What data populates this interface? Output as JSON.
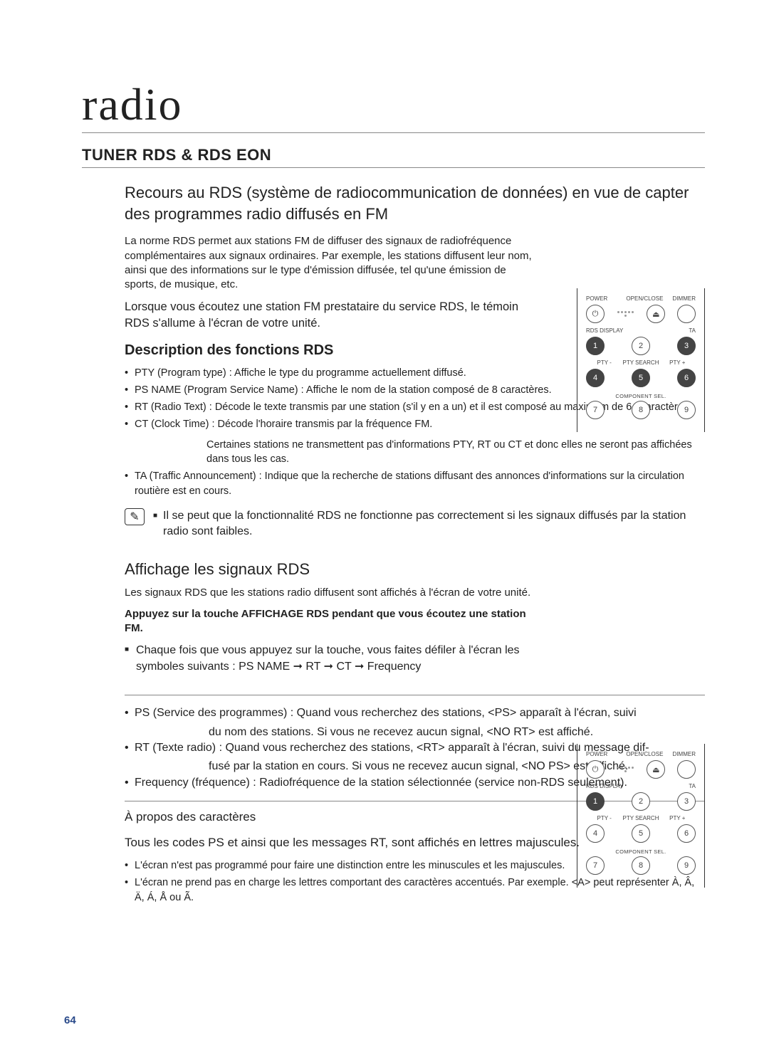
{
  "section_title": "radio",
  "h1": "TUNER RDS & RDS EON",
  "subtitle": "Recours au RDS (système de radiocommunication de données) en vue de capter des programmes radio diffusés en FM",
  "p1": "La norme RDS permet aux stations FM de diffuser des signaux de radiofréquence complémentaires aux signaux ordinaires. Par exemple, les stations diffusent leur nom, ainsi que des informations sur le type d'émission diffusée, tel qu'une émission de sports, de musique, etc.",
  "p2": "Lorsque vous écoutez une station FM prestataire du service RDS, le témoin RDS s'allume à l'écran de votre unité.",
  "h2a": "Description des fonctions RDS",
  "func": {
    "b1": "PTY (Program type) : Affiche le type du programme actuellement diffusé.",
    "b2": "PS NAME (Program Service Name) : Affiche le nom de la station composé de 8 caractères.",
    "b3": "RT (Radio Text) : Décode le texte transmis par une station (s'il y en a un) et il est composé au maximum de 64 caractères.",
    "b4": "CT (Clock Time) : Décode l'horaire transmis par la fréquence FM.",
    "b4_note": "Certaines stations ne transmettent pas d'informations PTY, RT ou CT et donc elles ne seront pas affichées dans tous les cas.",
    "b5": "TA (Traffic Announcement) : Indique que la recherche de stations diffusant des annonces d'informations sur la circulation routière est en cours."
  },
  "note1": "Il se peut que la fonctionnalité RDS ne fonctionne pas correctement si les signaux diffusés par la station radio sont faibles.",
  "h3a": "Affichage les signaux RDS",
  "p3": "Les signaux RDS que les stations radio diffusent sont affichés à l'écran de votre unité.",
  "p4_bold": "Appuyez sur la touche AFFICHAGE RDS pendant que vous écoutez une station FM.",
  "p5": "Chaque fois que vous appuyez sur la touche, vous faites défiler à l'écran les symboles suivants : PS NAME ➞ RT ➞ CT ➞ Frequency",
  "sig": {
    "b1a": "PS (Service des programmes) : Quand vous recherchez des stations, <PS> apparaît à l'écran, suivi",
    "b1b": "du nom des stations. Si vous ne recevez aucun signal, <NO RT> est affiché.",
    "b2a": "RT (Texte radio) : Quand vous recherchez des stations, <RT> apparaît à l'écran, suivi du message dif-",
    "b2b": "fusé par la station en cours. Si vous ne recevez aucun signal, <NO PS> est affiché.",
    "b3": "Frequency (fréquence) : Radiofréquence de la station sélectionnée (service non-RDS seulement)."
  },
  "char_h": "À propos des caractères",
  "char_p": "Tous les codes PS et ainsi que les messages RT, sont affichés en lettres majuscules.",
  "char": {
    "b1": "L'écran n'est pas programmé pour faire une distinction entre les minuscules et les majuscules.",
    "b2": "L'écran ne prend pas en charge les lettres comportant des caractères accentués. Par exemple. <A> peut représenter À, Â, Ä, Á, Å ou Ã."
  },
  "page": "64",
  "remote": {
    "labels": {
      "power": "POWER",
      "openclose": "OPEN/CLOSE",
      "dimmer": "DIMMER",
      "rds_display": "RDS DISPLAY",
      "ta": "TA",
      "pty_minus": "PTY -",
      "pty_search": "PTY SEARCH",
      "pty_plus": "PTY +",
      "component": "COMPONENT SEL."
    },
    "nums": [
      "1",
      "2",
      "3",
      "4",
      "5",
      "6",
      "7",
      "8",
      "9"
    ],
    "r1_highlight": [
      0,
      2,
      3,
      4,
      5
    ],
    "r2_highlight": [
      0
    ]
  }
}
